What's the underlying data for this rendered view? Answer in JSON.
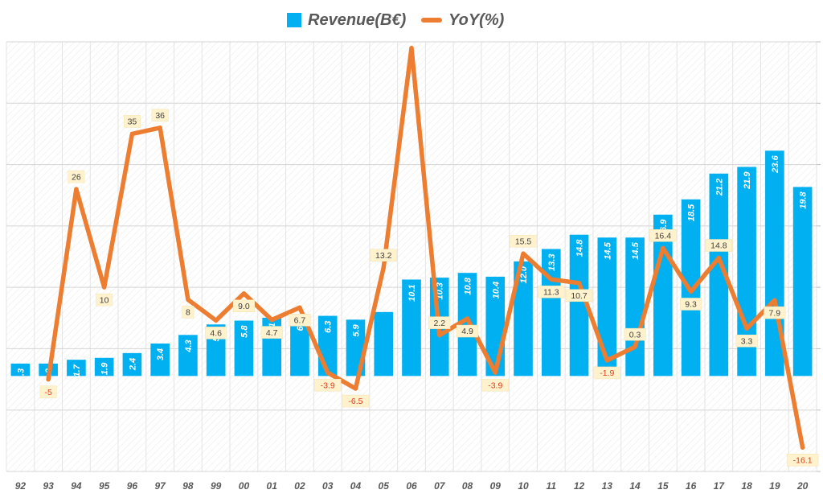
{
  "chart_data": {
    "type": "bar",
    "categories": [
      "92",
      "93",
      "94",
      "95",
      "96",
      "97",
      "98",
      "99",
      "00",
      "01",
      "02",
      "03",
      "04",
      "05",
      "06",
      "07",
      "08",
      "09",
      "10",
      "11",
      "12",
      "13",
      "14",
      "15",
      "16",
      "17",
      "18",
      "19",
      "20"
    ],
    "series": [
      {
        "name": "Revenue(B€)",
        "type": "bar",
        "axis": "left",
        "color": "#00b0f0",
        "values": [
          1.3,
          1.3,
          1.7,
          1.9,
          2.4,
          3.4,
          4.3,
          5.4,
          5.8,
          6.1,
          6.5,
          6.3,
          5.9,
          6.7,
          10.1,
          10.3,
          10.8,
          10.4,
          12.0,
          13.3,
          14.8,
          14.5,
          14.5,
          16.9,
          18.5,
          21.2,
          21.9,
          23.6,
          19.8
        ],
        "labels": [
          "1.3",
          "1.3",
          "1.7",
          "1.9",
          "2.4",
          "3.4",
          "4.3",
          "5.4",
          "5.8",
          "6.1",
          "6.5",
          "6.3",
          "5.9",
          "",
          "10.1",
          "10.3",
          "10.8",
          "10.4",
          "12.0",
          "13.3",
          "14.8",
          "14.5",
          "14.5",
          "16.9",
          "18.5",
          "21.2",
          "21.9",
          "23.6",
          "19.8"
        ]
      },
      {
        "name": "YoY(%)",
        "type": "line",
        "axis": "right",
        "color": "#ed7d31",
        "values": [
          null,
          -5,
          26,
          10,
          35,
          36,
          8,
          4.6,
          9.0,
          4.7,
          6.7,
          -3.9,
          -6.5,
          13.2,
          49,
          2.2,
          4.9,
          -3.9,
          15.5,
          11.3,
          10.7,
          -1.9,
          0.3,
          16.4,
          9.3,
          14.8,
          3.3,
          7.9,
          -16.1
        ],
        "labels": [
          "",
          "-5",
          "26",
          "10",
          "35",
          "36",
          "8",
          "4.6",
          "9.0",
          "4.7",
          "6.7",
          "-3.9",
          "-6.5",
          "13.2",
          "",
          "2.2",
          "4.9",
          "-3.9",
          "15.5",
          "11.3",
          "10.7",
          "-1.9",
          "0.3",
          "16.4",
          "9.3",
          "14.8",
          "3.3",
          "7.9",
          "-16.1"
        ]
      }
    ],
    "ylim_left": [
      -10,
      35
    ],
    "ylim_right": [
      -20,
      50
    ],
    "legend_position": "top-center",
    "grid": true
  }
}
